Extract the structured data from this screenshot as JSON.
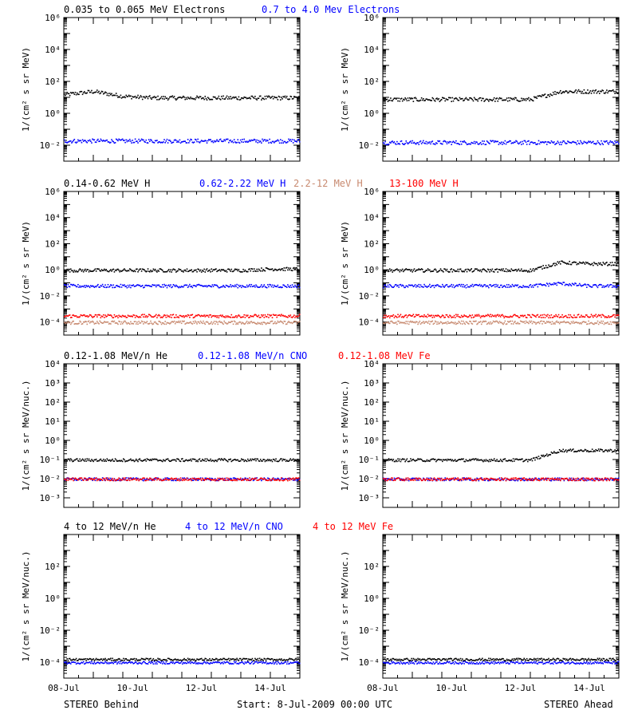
{
  "colors": {
    "black": "#000000",
    "blue": "#0000ff",
    "tan": "#c88a70",
    "red": "#ff0000"
  },
  "panels": [
    {
      "id": "electrons",
      "headers": [
        {
          "text": "0.035 to 0.065 MeV Electrons",
          "color": "#000000"
        },
        {
          "text": "0.7 to 4.0 Mev Electrons",
          "color": "#0000ff"
        }
      ],
      "ylabel": "1/(cm² s sr MeV)",
      "scale": "log",
      "ylim_exp": [
        -3,
        6
      ],
      "tick_exps": [
        -2,
        0,
        2,
        4,
        6
      ],
      "tick_labels": [
        "10⁻²",
        "10⁰",
        "10²",
        "10⁴",
        "10⁶"
      ]
    },
    {
      "id": "protons",
      "headers": [
        {
          "text": "0.14-0.62 MeV H",
          "color": "#000000"
        },
        {
          "text": "0.62-2.22 MeV H",
          "color": "#0000ff"
        },
        {
          "text": "2.2-12 MeV H",
          "color": "#c88a70"
        },
        {
          "text": "13-100 MeV H",
          "color": "#ff0000"
        }
      ],
      "ylabel": "1/(cm² s sr MeV)",
      "scale": "log",
      "ylim_exp": [
        -5,
        6
      ],
      "tick_exps": [
        -4,
        -2,
        0,
        2,
        4,
        6
      ],
      "tick_labels": [
        "10⁻⁴",
        "10⁻²",
        "10⁰",
        "10²",
        "10⁴",
        "10⁶"
      ]
    },
    {
      "id": "suprathermal",
      "headers": [
        {
          "text": "0.12-1.08 MeV/n He",
          "color": "#000000"
        },
        {
          "text": "0.12-1.08 MeV/n CNO",
          "color": "#0000ff"
        },
        {
          "text": "0.12-1.08 MeV Fe",
          "color": "#ff0000"
        }
      ],
      "ylabel": "1/(cm² s sr MeV/nuc.)",
      "scale": "log",
      "ylim_exp": [
        -3.5,
        4
      ],
      "tick_exps": [
        -3,
        -2,
        -1,
        0,
        1,
        2,
        3,
        4
      ],
      "tick_labels": [
        "10⁻³",
        "10⁻²",
        "10⁻¹",
        "10⁰",
        "10¹",
        "10²",
        "10³",
        "10⁴"
      ]
    },
    {
      "id": "energetic",
      "headers": [
        {
          "text": "4 to 12 MeV/n He",
          "color": "#000000"
        },
        {
          "text": "4 to 12 MeV/n CNO",
          "color": "#0000ff"
        },
        {
          "text": "4 to 12 MeV Fe",
          "color": "#ff0000"
        }
      ],
      "ylabel": "1/(cm² s sr MeV/nuc.)",
      "scale": "log",
      "ylim_exp": [
        -5,
        4
      ],
      "tick_exps": [
        -4,
        -2,
        0,
        2
      ],
      "tick_labels": [
        "10⁻⁴",
        "10⁻²",
        "10⁰",
        "10²"
      ]
    }
  ],
  "x_tick_labels": [
    "08-Jul",
    "10-Jul",
    "12-Jul",
    "14-Jul"
  ],
  "footer": {
    "left": "STEREO Behind",
    "center": "Start:  8-Jul-2009 00:00 UTC",
    "right": "STEREO Ahead"
  },
  "chart_data": [
    {
      "type": "scatter",
      "scale": "log",
      "x": [
        "08-Jul",
        "10-Jul",
        "12-Jul",
        "14-Jul"
      ],
      "series": [
        {
          "name": "0.035 to 0.065 MeV Electrons",
          "color": "#000000",
          "behind_log10": [
            1.2,
            1.4,
            1.1,
            1.0,
            1.0,
            1.0,
            1.0,
            1.0
          ],
          "ahead_log10": [
            0.9,
            0.9,
            0.9,
            0.9,
            0.9,
            0.9,
            1.4,
            1.4
          ]
        },
        {
          "name": "0.7 to 4.0 Mev Electrons",
          "color": "#0000ff",
          "behind_log10": [
            -1.7,
            -1.7,
            -1.7,
            -1.7,
            -1.7,
            -1.7,
            -1.7,
            -1.7
          ],
          "ahead_log10": [
            -1.8,
            -1.8,
            -1.8,
            -1.8,
            -1.8,
            -1.8,
            -1.8,
            -1.8
          ]
        }
      ]
    },
    {
      "type": "scatter",
      "scale": "log",
      "x": [
        "08-Jul",
        "10-Jul",
        "12-Jul",
        "14-Jul"
      ],
      "series": [
        {
          "name": "0.14-0.62 MeV H",
          "color": "#000000",
          "behind_log10": [
            0.0,
            0.0,
            0.0,
            0.0,
            0.0,
            0.0,
            0.0,
            0.1
          ],
          "ahead_log10": [
            0.0,
            0.0,
            0.0,
            0.0,
            0.0,
            0.0,
            0.6,
            0.5
          ]
        },
        {
          "name": "0.62-2.22 MeV H",
          "color": "#0000ff",
          "behind_log10": [
            -1.2,
            -1.2,
            -1.2,
            -1.2,
            -1.2,
            -1.2,
            -1.2,
            -1.2
          ],
          "ahead_log10": [
            -1.2,
            -1.2,
            -1.2,
            -1.2,
            -1.2,
            -1.2,
            -1.0,
            -1.2
          ]
        },
        {
          "name": "2.2-12 MeV H",
          "color": "#c88a70",
          "behind_log10": [
            -4.0,
            -4.0,
            -4.0,
            -4.0,
            -4.0,
            -4.0,
            -4.0,
            -4.0
          ],
          "ahead_log10": [
            -4.0,
            -4.0,
            -4.0,
            -4.0,
            -4.0,
            -4.0,
            -4.0,
            -4.0
          ]
        },
        {
          "name": "13-100 MeV H",
          "color": "#ff0000",
          "behind_log10": [
            -3.5,
            -3.5,
            -3.5,
            -3.5,
            -3.5,
            -3.5,
            -3.5,
            -3.5
          ],
          "ahead_log10": [
            -3.5,
            -3.5,
            -3.5,
            -3.5,
            -3.5,
            -3.5,
            -3.5,
            -3.5
          ]
        }
      ]
    },
    {
      "type": "scatter",
      "scale": "log",
      "x": [
        "08-Jul",
        "10-Jul",
        "12-Jul",
        "14-Jul"
      ],
      "series": [
        {
          "name": "0.12-1.08 MeV/n He",
          "color": "#000000",
          "behind_log10": [
            -1.0,
            -1.0,
            -1.0,
            -1.0,
            -1.0,
            -1.0,
            -1.0,
            -1.0
          ],
          "ahead_log10": [
            -1.0,
            -1.0,
            -1.0,
            -1.0,
            -1.0,
            -1.0,
            -0.5,
            -0.5
          ]
        },
        {
          "name": "0.12-1.08 MeV/n CNO",
          "color": "#0000ff",
          "behind_log10": [
            -2.0,
            -2.0,
            -2.0,
            -2.0,
            -2.0,
            -2.0,
            -2.0,
            -2.0
          ],
          "ahead_log10": [
            -2.0,
            -2.0,
            -2.0,
            -2.0,
            -2.0,
            -2.0,
            -2.0,
            -2.0
          ]
        },
        {
          "name": "0.12-1.08 MeV Fe",
          "color": "#ff0000",
          "behind_log10": [
            -2.0,
            -2.0,
            -2.0,
            -2.0,
            -2.0,
            -2.0,
            -2.0,
            -2.0
          ],
          "ahead_log10": [
            -2.0,
            -2.0,
            -2.0,
            -2.0,
            -2.0,
            -2.0,
            -2.0,
            -2.0
          ]
        }
      ]
    },
    {
      "type": "scatter",
      "scale": "log",
      "x": [
        "08-Jul",
        "10-Jul",
        "12-Jul",
        "14-Jul"
      ],
      "series": [
        {
          "name": "4 to 12 MeV/n He",
          "color": "#000000",
          "behind_log10": [
            -3.8,
            -3.8,
            -3.8,
            -3.8,
            -3.8,
            -3.8,
            -3.8,
            -3.8
          ],
          "ahead_log10": [
            -3.8,
            -3.8,
            -3.8,
            -3.8,
            -3.8,
            -3.8,
            -3.8,
            -3.8
          ]
        },
        {
          "name": "4 to 12 MeV/n CNO",
          "color": "#0000ff",
          "behind_log10": [
            -4.0,
            -4.0,
            -4.0,
            -4.0,
            -4.0,
            -4.0,
            -4.0,
            -4.0
          ],
          "ahead_log10": [
            -4.0,
            -4.0,
            -4.0,
            -4.0,
            -4.0,
            -4.0,
            -4.0,
            -4.0
          ]
        },
        {
          "name": "4 to 12 MeV Fe",
          "color": "#ff0000",
          "behind_log10": [],
          "ahead_log10": []
        }
      ]
    }
  ]
}
